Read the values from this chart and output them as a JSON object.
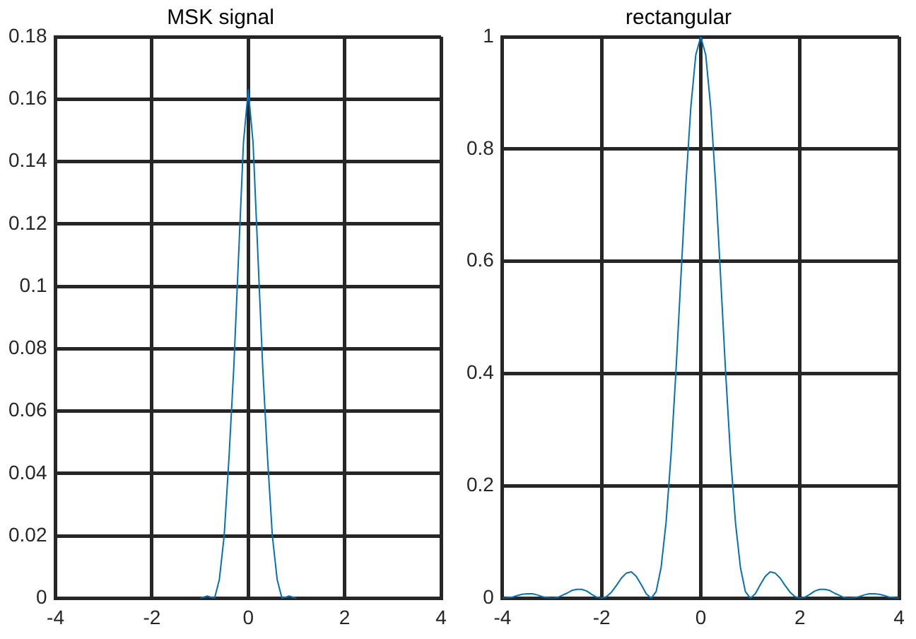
{
  "chart_data": [
    {
      "type": "line",
      "title": "MSK signal",
      "x": [
        -1,
        -0.85,
        -0.7,
        -0.6,
        -0.5,
        -0.4,
        -0.3,
        -0.2,
        -0.1,
        0,
        0.1,
        0.2,
        0.3,
        0.4,
        0.5,
        0.6,
        0.7,
        0.85,
        1
      ],
      "values": [
        0,
        0.0007,
        0,
        0.006,
        0.02,
        0.045,
        0.074,
        0.11,
        0.146,
        0.163,
        0.146,
        0.11,
        0.074,
        0.045,
        0.02,
        0.006,
        0,
        0.0007,
        0
      ],
      "color": "#0072bd",
      "xlim": [
        -4,
        4
      ],
      "ylim": [
        0,
        0.18
      ],
      "xticks": [
        -4,
        -2,
        0,
        2,
        4
      ],
      "yticks": [
        0,
        0.02,
        0.04,
        0.06,
        0.08,
        0.1,
        0.12,
        0.14,
        0.16,
        0.18
      ],
      "grid": true
    },
    {
      "type": "line",
      "title": "rectangular",
      "x": [
        -4,
        -3.9,
        -3.8,
        -3.7,
        -3.6,
        -3.5,
        -3.4,
        -3.3,
        -3.2,
        -3.1,
        -3,
        -2.9,
        -2.8,
        -2.7,
        -2.6,
        -2.5,
        -2.4,
        -2.3,
        -2.2,
        -2.1,
        -2,
        -1.9,
        -1.8,
        -1.7,
        -1.6,
        -1.5,
        -1.4,
        -1.3,
        -1.2,
        -1.1,
        -1,
        -0.9,
        -0.8,
        -0.7,
        -0.6,
        -0.5,
        -0.4,
        -0.3,
        -0.2,
        -0.1,
        0,
        0.1,
        0.2,
        0.3,
        0.4,
        0.5,
        0.6,
        0.7,
        0.8,
        0.9,
        1,
        1.1,
        1.2,
        1.3,
        1.4,
        1.5,
        1.6,
        1.7,
        1.8,
        1.9,
        2,
        2.1,
        2.2,
        2.3,
        2.4,
        2.5,
        2.6,
        2.7,
        2.8,
        2.9,
        3,
        3.1,
        3.2,
        3.3,
        3.4,
        3.5,
        3.6,
        3.7,
        3.8,
        3.9,
        4
      ],
      "values": [
        0,
        0.001,
        0.002,
        0.005,
        0.007,
        0.008,
        0.008,
        0.006,
        0.003,
        0.001,
        0,
        0.001,
        0.005,
        0.009,
        0.014,
        0.016,
        0.016,
        0.013,
        0.007,
        0.002,
        0,
        0.003,
        0.011,
        0.023,
        0.036,
        0.045,
        0.047,
        0.039,
        0.024,
        0.008,
        0,
        0.012,
        0.055,
        0.135,
        0.255,
        0.405,
        0.573,
        0.737,
        0.875,
        0.968,
        1,
        0.968,
        0.875,
        0.737,
        0.573,
        0.405,
        0.255,
        0.135,
        0.055,
        0.012,
        0,
        0.008,
        0.024,
        0.039,
        0.047,
        0.045,
        0.036,
        0.023,
        0.011,
        0.003,
        0,
        0.002,
        0.007,
        0.013,
        0.016,
        0.016,
        0.014,
        0.009,
        0.005,
        0.001,
        0,
        0.001,
        0.003,
        0.006,
        0.008,
        0.008,
        0.007,
        0.005,
        0.002,
        0.001,
        0
      ],
      "color": "#0072bd",
      "xlim": [
        -4,
        4
      ],
      "ylim": [
        0,
        1
      ],
      "xticks": [
        -4,
        -2,
        0,
        2,
        4
      ],
      "yticks": [
        0,
        0.2,
        0.4,
        0.6,
        0.8,
        1
      ],
      "grid": true
    }
  ]
}
